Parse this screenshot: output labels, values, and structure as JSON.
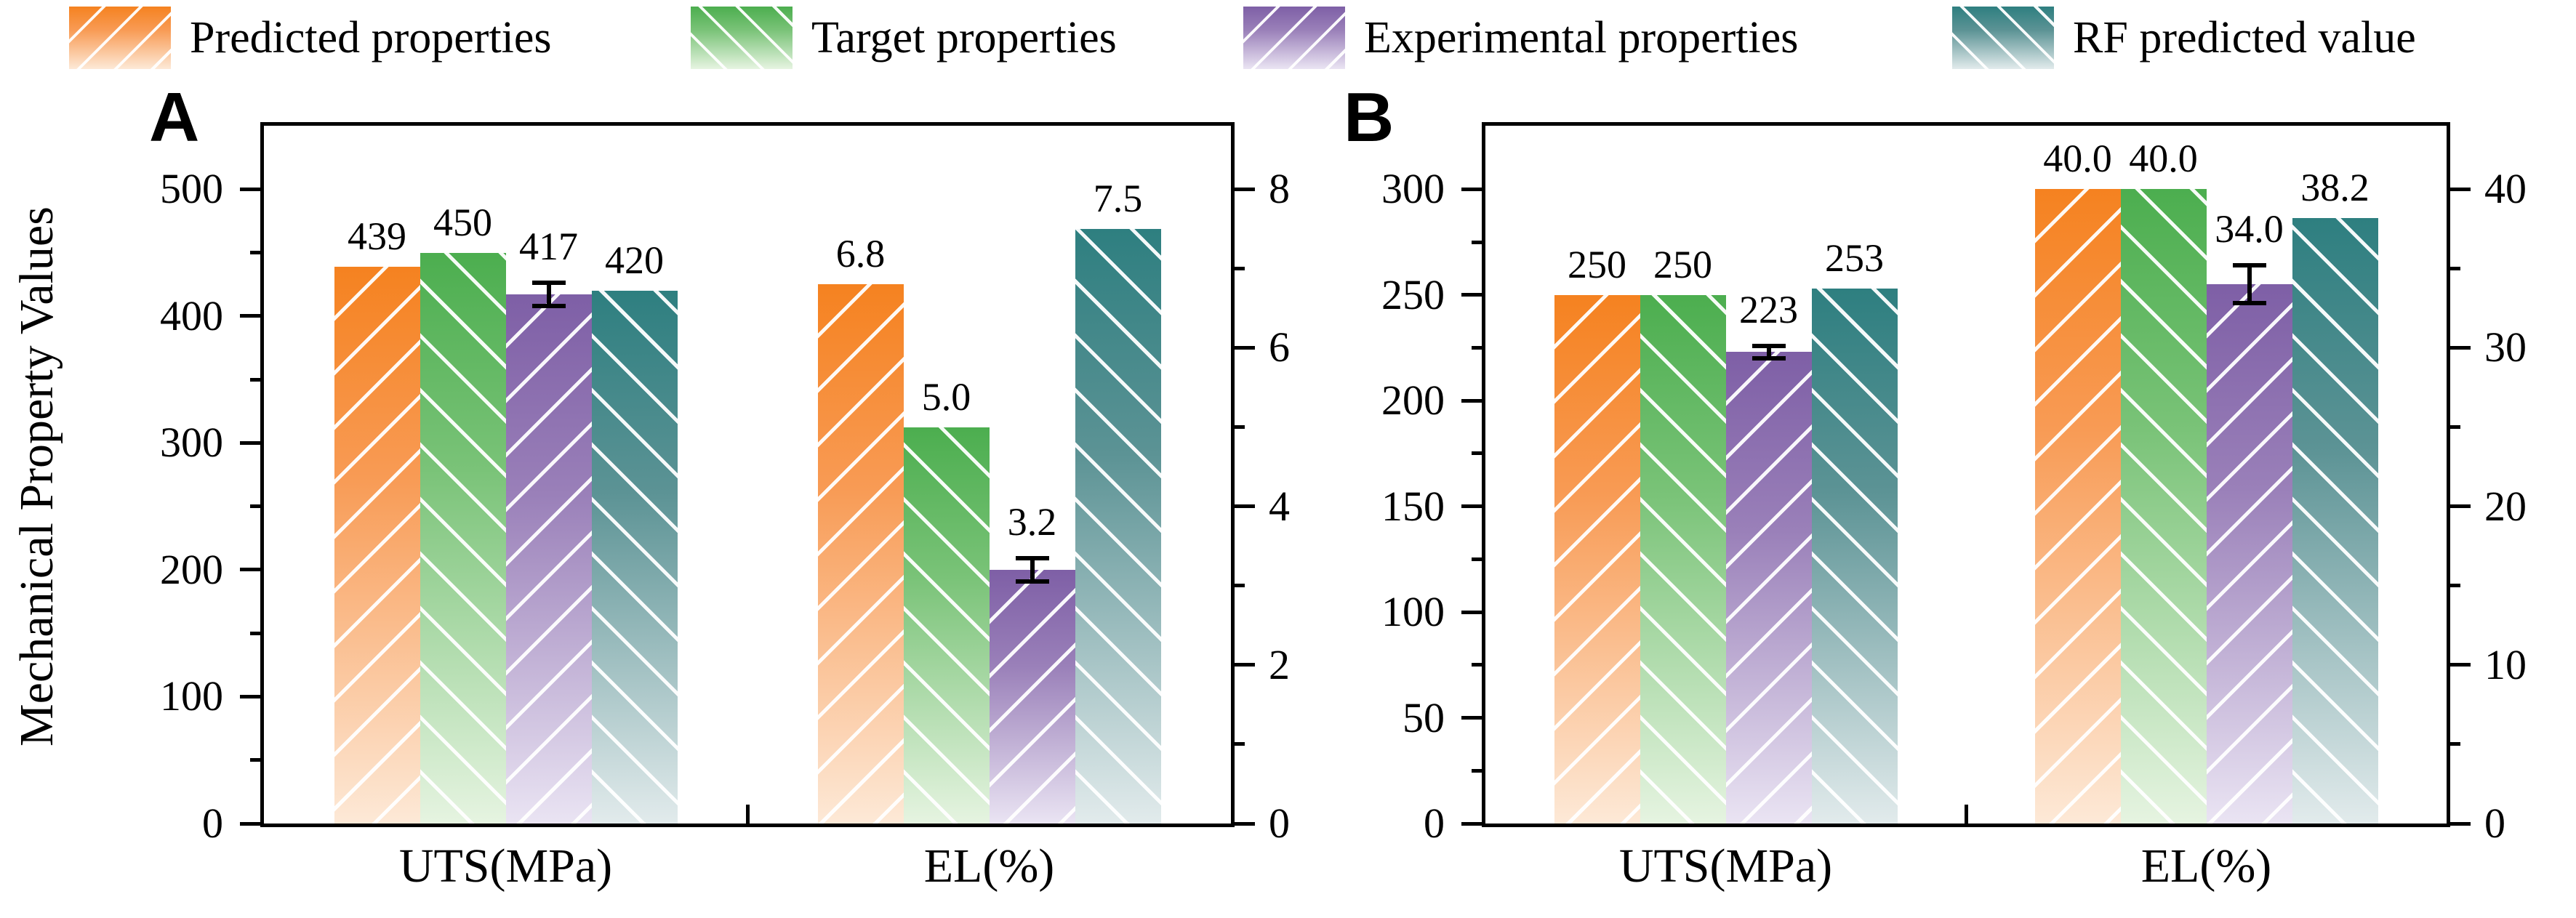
{
  "legend": {
    "items": [
      {
        "label": "Predicted properties",
        "hatch": "/",
        "color_top": "#F58220",
        "color_mid": "#F89B55",
        "color_bottom": "#FDE9D7"
      },
      {
        "label": "Target properties",
        "hatch": "\\",
        "color_top": "#4CAE4F",
        "color_mid": "#7AC378",
        "color_bottom": "#E6F4E1"
      },
      {
        "label": "Experimental properties",
        "hatch": "/",
        "color_top": "#7E5FA6",
        "color_mid": "#9A80B9",
        "color_bottom": "#EAE4F3"
      },
      {
        "label": "RF predicted value",
        "hatch": "\\",
        "color_top": "#2E7F80",
        "color_mid": "#5C9395",
        "color_bottom": "#E2EBEC"
      }
    ]
  },
  "chart_data": [
    {
      "panel": "A",
      "type": "bar",
      "ylabel": "Mechanical Property Values",
      "categories": [
        "UTS(MPa)",
        "EL(%)"
      ],
      "series": [
        {
          "name": "Predicted properties",
          "values": [
            439,
            6.8
          ]
        },
        {
          "name": "Target properties",
          "values": [
            450,
            5.0
          ]
        },
        {
          "name": "Experimental properties",
          "values": [
            417,
            3.2
          ],
          "errors": [
            9,
            0.15
          ]
        },
        {
          "name": "RF predicted value",
          "values": [
            420,
            7.5
          ]
        }
      ],
      "value_labels": [
        [
          "439",
          "450",
          "417",
          "420"
        ],
        [
          "6.8",
          "5.0",
          "3.2",
          "7.5"
        ]
      ],
      "left_axis": {
        "applies_to": "UTS(MPa)",
        "ticks": [
          0,
          100,
          200,
          300,
          400,
          500
        ],
        "minor_step": 50,
        "max": 550
      },
      "right_axis": {
        "applies_to": "EL(%)",
        "ticks": [
          0,
          2,
          4,
          6,
          8
        ],
        "minor_step": 1,
        "max": 8.8
      },
      "grid": false,
      "legend_position": "top"
    },
    {
      "panel": "B",
      "type": "bar",
      "ylabel": "",
      "categories": [
        "UTS(MPa)",
        "EL(%)"
      ],
      "series": [
        {
          "name": "Predicted properties",
          "values": [
            250,
            40.0
          ]
        },
        {
          "name": "Target properties",
          "values": [
            250,
            40.0
          ]
        },
        {
          "name": "Experimental properties",
          "values": [
            223,
            34.0
          ],
          "errors": [
            3,
            1.2
          ]
        },
        {
          "name": "RF predicted value",
          "values": [
            253,
            38.2
          ]
        }
      ],
      "value_labels": [
        [
          "250",
          "250",
          "223",
          "253"
        ],
        [
          "40.0",
          "40.0",
          "34.0",
          "38.2"
        ]
      ],
      "left_axis": {
        "applies_to": "UTS(MPa)",
        "ticks": [
          0,
          50,
          100,
          150,
          200,
          250,
          300
        ],
        "minor_step": 25,
        "max": 330
      },
      "right_axis": {
        "applies_to": "EL(%)",
        "ticks": [
          0,
          10,
          20,
          30,
          40
        ],
        "minor_step": 5,
        "max": 44
      },
      "grid": false,
      "legend_position": "top"
    }
  ]
}
